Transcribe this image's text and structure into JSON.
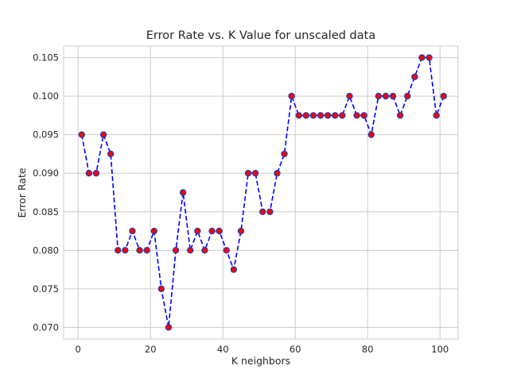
{
  "chart_data": {
    "type": "line",
    "title": "Error Rate vs. K Value for unscaled data",
    "xlabel": "K neighbors",
    "ylabel": "Error Rate",
    "xlim": [
      -4,
      105
    ],
    "ylim": [
      0.0685,
      0.1065
    ],
    "xticks": [
      0,
      20,
      40,
      60,
      80,
      100
    ],
    "yticks": [
      0.07,
      0.075,
      0.08,
      0.085,
      0.09,
      0.095,
      0.1,
      0.105
    ],
    "ytick_labels": [
      "0.070",
      "0.075",
      "0.080",
      "0.085",
      "0.090",
      "0.095",
      "0.100",
      "0.105"
    ],
    "grid": true,
    "line_color": "#0000ff",
    "line_style": "dashed",
    "marker_face_color": "#ff0000",
    "marker_edge_color": "#1f3fb0",
    "series": [
      {
        "x": [
          1,
          3,
          5,
          7,
          9,
          11,
          13,
          15,
          17,
          19,
          21,
          23,
          25,
          27,
          29,
          31,
          33,
          35,
          37,
          39,
          41,
          43,
          45,
          47,
          49,
          51,
          53,
          55,
          57,
          59,
          61,
          63,
          65,
          67,
          69,
          71,
          73,
          75,
          77,
          79,
          81,
          83,
          85,
          87,
          89,
          91,
          93,
          95,
          97,
          99,
          101
        ],
        "values": [
          0.095,
          0.09,
          0.09,
          0.095,
          0.0925,
          0.08,
          0.08,
          0.0825,
          0.08,
          0.08,
          0.0825,
          0.075,
          0.07,
          0.08,
          0.0875,
          0.08,
          0.0825,
          0.08,
          0.0825,
          0.0825,
          0.08,
          0.0775,
          0.0825,
          0.09,
          0.09,
          0.085,
          0.085,
          0.09,
          0.0925,
          0.1,
          0.0975,
          0.0975,
          0.0975,
          0.0975,
          0.0975,
          0.0975,
          0.0975,
          0.1,
          0.0975,
          0.0975,
          0.095,
          0.1,
          0.1,
          0.1,
          0.0975,
          0.1,
          0.1025,
          0.105,
          0.105,
          0.0975,
          0.1
        ]
      }
    ]
  }
}
